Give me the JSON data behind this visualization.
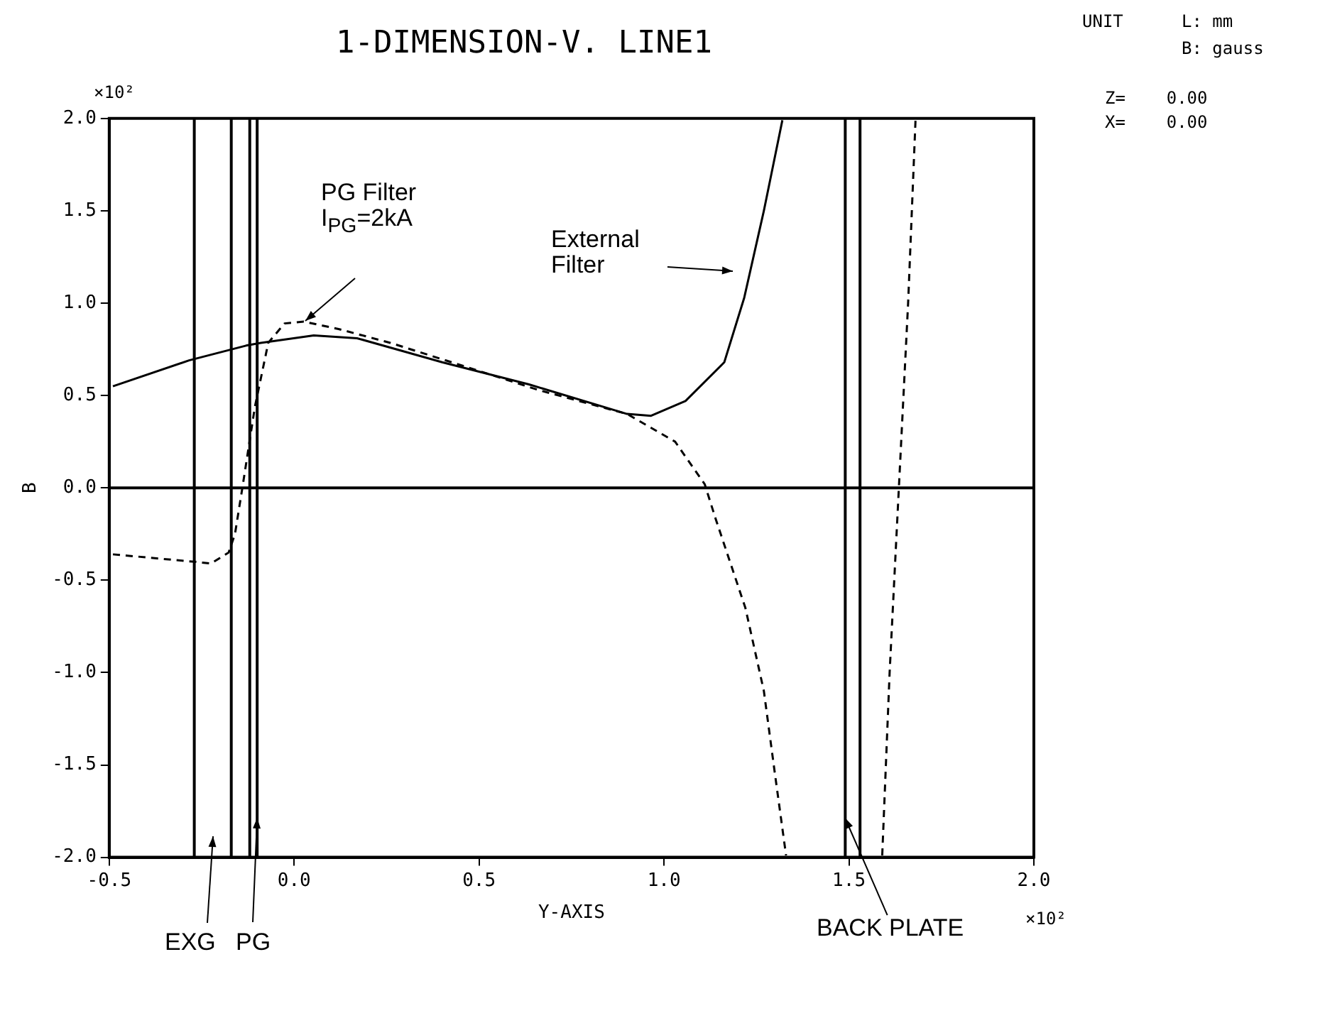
{
  "chart_data": {
    "type": "line",
    "title": "1-DIMENSION-V. LINE1",
    "xlabel": "Y-AXIS",
    "ylabel": "B",
    "xlim": [
      -0.5,
      2.0
    ],
    "xticks": [
      {
        "value": -0.5,
        "label": "-0.5"
      },
      {
        "value": 0,
        "label": "0.0"
      },
      0.5,
      {
        "value": 1,
        "label": "1.0"
      },
      1.5,
      {
        "value": 2,
        "label": "2.0"
      }
    ],
    "ylim": [
      -2,
      2
    ],
    "yticks": [
      {
        "value": -2,
        "label": "-2.0"
      },
      -1.5,
      {
        "value": -1,
        "label": "-1.0"
      },
      -0.5,
      {
        "value": 0,
        "label": "0.0"
      },
      0.5,
      {
        "value": 1,
        "label": "1.0"
      },
      1.5,
      {
        "value": 2,
        "label": "2.0"
      }
    ],
    "grid": false,
    "legend": false,
    "marker": "none",
    "series": [
      {
        "color": "#000000",
        "line_style": "solid",
        "x": [
          -0.49,
          -0.284,
          -0.13,
          -0.09,
          0.053,
          0.17,
          0.4,
          0.635,
          0.9,
          0.965,
          1.058,
          1.163,
          1.217,
          1.27,
          1.32
        ],
        "values": [
          0.55,
          0.69,
          0.77,
          0.785,
          0.825,
          0.81,
          0.68,
          0.56,
          0.4,
          0.39,
          0.47,
          0.68,
          1.03,
          1.5,
          1.99
        ]
      },
      {
        "color": "#000000",
        "line_style": "dashed",
        "x": [
          -0.49,
          -0.27,
          -0.225,
          -0.177,
          -0.16,
          -0.14,
          -0.106,
          -0.07,
          -0.026,
          0.026,
          0.12,
          0.26,
          0.52,
          0.66,
          0.9,
          1.03,
          1.11,
          1.14,
          1.22,
          1.27,
          1.3,
          1.33,
          1.45,
          1.59,
          1.61,
          1.635,
          1.66,
          1.68
        ],
        "values": [
          -0.36,
          -0.4,
          -0.41,
          -0.35,
          -0.25,
          0,
          0.44,
          0.785,
          0.89,
          0.9,
          0.86,
          0.785,
          0.62,
          0.53,
          0.4,
          0.25,
          0.02,
          -0.17,
          -0.65,
          -1.1,
          -1.55,
          -1.99,
          null,
          -1.99,
          -1.0,
          0,
          1.0,
          1.99
        ]
      }
    ],
    "ref_lines": [
      {
        "axis": "x",
        "value": -0.27,
        "color": "#000000"
      },
      {
        "axis": "x",
        "value": -0.17,
        "color": "#000000"
      },
      {
        "axis": "x",
        "value": -0.12,
        "color": "#000000"
      },
      {
        "axis": "x",
        "value": -0.1,
        "color": "#000000"
      },
      {
        "axis": "x",
        "value": 1.49,
        "color": "#000000"
      },
      {
        "axis": "x",
        "value": 1.53,
        "color": "#000000"
      },
      {
        "axis": "y",
        "value": 0,
        "color": "#000000"
      }
    ],
    "annotations": [
      "PG Filter\nI$_{PG}$=2kA",
      "External\nFilter",
      "EXG",
      {
        "text": "PG",
        "x": -0.1,
        "y": -1.79
      },
      {
        "text": "BACK PLATE",
        "x": 1.49,
        "y": -1.79
      },
      "×10²",
      "UNIT",
      "L: mm",
      "B: gauss",
      "Z=    0.00",
      "X=    0.00",
      "×10²"
    ]
  }
}
